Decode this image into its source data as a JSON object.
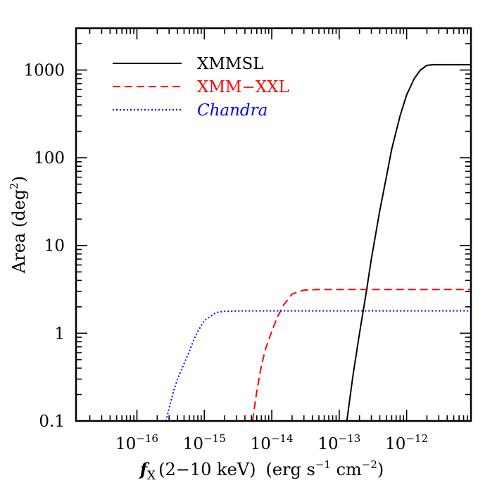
{
  "chart_data": {
    "type": "line",
    "title": "",
    "xlabel": {
      "f": "f",
      "sub": "X",
      "band": "(2−10 keV)",
      "unit_open": "(erg s",
      "unit_exp1": "−1",
      "unit_mid": " cm",
      "unit_exp2": "−2",
      "unit_close": ")"
    },
    "ylabel": {
      "text": "Area (deg",
      "sup": "2",
      "close": ")"
    },
    "xscale": "log",
    "yscale": "log",
    "xlim": [
      1.25e-17,
      9e-12
    ],
    "ylim": [
      0.1,
      3000
    ],
    "grid": false,
    "legend_position": "top-left",
    "x_ticks": [
      {
        "base": "10",
        "exp": "−16",
        "value": 1e-16
      },
      {
        "base": "10",
        "exp": "−15",
        "value": 1e-15
      },
      {
        "base": "10",
        "exp": "−14",
        "value": 1e-14
      },
      {
        "base": "10",
        "exp": "−13",
        "value": 1e-13
      },
      {
        "base": "10",
        "exp": "−12",
        "value": 1e-12
      }
    ],
    "y_ticks": [
      {
        "label": "0.1",
        "value": 0.1
      },
      {
        "label": "1",
        "value": 1
      },
      {
        "label": "10",
        "value": 10
      },
      {
        "label": "100",
        "value": 100
      },
      {
        "label": "1000",
        "value": 1000
      }
    ],
    "series": [
      {
        "name": "XMMSL",
        "color": "#000000",
        "style": "solid",
        "italic": false,
        "x": [
          1.3e-13,
          1.6e-13,
          2e-13,
          2.5e-13,
          3e-13,
          4e-13,
          5e-13,
          6e-13,
          8e-13,
          1e-12,
          1.3e-12,
          1.6e-12,
          2e-12,
          2.5e-12,
          4e-12,
          9e-12
        ],
        "y": [
          0.1,
          0.33,
          1.0,
          2.8,
          7,
          25,
          60,
          125,
          300,
          520,
          800,
          1000,
          1130,
          1150,
          1150,
          1150
        ]
      },
      {
        "name": "XMM−XXL",
        "color": "#ff0000",
        "style": "dashed",
        "italic": false,
        "x": [
          5.2e-15,
          6e-15,
          7e-15,
          8e-15,
          1e-14,
          1.2e-14,
          1.5e-14,
          2e-14,
          3e-14,
          5e-14,
          1e-13,
          1e-12,
          9e-12
        ],
        "y": [
          0.1,
          0.22,
          0.42,
          0.65,
          1.05,
          1.5,
          2.1,
          2.8,
          3.1,
          3.15,
          3.15,
          3.15,
          3.15
        ]
      },
      {
        "name": "Chandra",
        "color": "#0000ff",
        "style": "dotted",
        "italic": true,
        "x": [
          2.7e-16,
          3e-16,
          3.5e-16,
          4e-16,
          5e-16,
          6e-16,
          7e-16,
          8e-16,
          1e-15,
          1.5e-15,
          2e-15,
          4e-15,
          1e-14,
          1e-13,
          1e-12,
          9e-12
        ],
        "y": [
          0.1,
          0.14,
          0.22,
          0.3,
          0.45,
          0.62,
          0.85,
          1.05,
          1.4,
          1.72,
          1.78,
          1.8,
          1.8,
          1.8,
          1.8,
          1.8
        ]
      }
    ]
  }
}
